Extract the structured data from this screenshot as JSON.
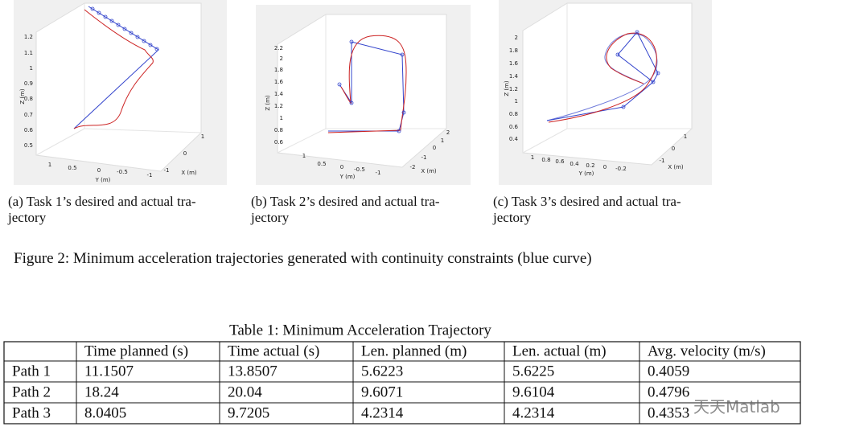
{
  "figure": {
    "subfigures": [
      {
        "z_axis_label": "Z (m)",
        "y_axis_label": "Y (m)",
        "x_axis_label": "X (m)",
        "z_ticks": [
          "1.2",
          "1.1",
          "1",
          "0.9",
          "0.8",
          "0.7",
          "0.6",
          "0.5"
        ],
        "y_ticks": [
          "1",
          "0.5",
          "0",
          "-0.5",
          "-1"
        ],
        "x_ticks": [
          "-1",
          "0",
          "1"
        ],
        "caption": [
          "(a) Task 1’s desired and actual tra-",
          "jectory"
        ]
      },
      {
        "z_axis_label": "Z (m)",
        "y_axis_label": "Y (m)",
        "x_axis_label": "X (m)",
        "z_ticks": [
          "2.2",
          "2",
          "1.8",
          "1.6",
          "1.4",
          "1.2",
          "1",
          "0.8",
          "0.6"
        ],
        "y_ticks": [
          "1",
          "0.5",
          "0",
          "-0.5",
          "-1"
        ],
        "x_ticks": [
          "-2",
          "-1",
          "0",
          "1",
          "2"
        ],
        "caption": [
          "(b) Task 2’s desired and actual tra-",
          "jectory"
        ]
      },
      {
        "z_axis_label": "Z (m)",
        "y_axis_label": "Y (m)",
        "x_axis_label": "X (m)",
        "z_ticks": [
          "2",
          "1.8",
          "1.6",
          "1.4",
          "1.2",
          "1",
          "0.8",
          "0.6",
          "0.4"
        ],
        "y_ticks": [
          "1",
          "0.8",
          "0.6",
          "0.4",
          "0.2",
          "0",
          "-0.2"
        ],
        "x_ticks": [
          "-1",
          "0",
          "1"
        ],
        "caption": [
          "(c) Task 3’s desired and actual tra-",
          "jectory"
        ]
      }
    ],
    "caption": "Figure 2: Minimum acceleration trajectories generated with continuity constraints (blue curve)"
  },
  "table": {
    "title": "Table 1: Minimum Acceleration Trajectory",
    "header": [
      "",
      "Time planned (s)",
      "Time actual (s)",
      "Len. planned (m)",
      "Len. actual (m)",
      "Avg. velocity (m/s)"
    ],
    "rows": [
      [
        "Path 1",
        "11.1507",
        "13.8507",
        "5.6223",
        "5.6225",
        "0.4059"
      ],
      [
        "Path 2",
        "18.24",
        "20.04",
        "9.6071",
        "9.6104",
        "0.4796"
      ],
      [
        "Path 3",
        "8.0405",
        "9.7205",
        "4.2314",
        "4.2314",
        "0.4353"
      ]
    ]
  },
  "watermark": "天天Matlab"
}
